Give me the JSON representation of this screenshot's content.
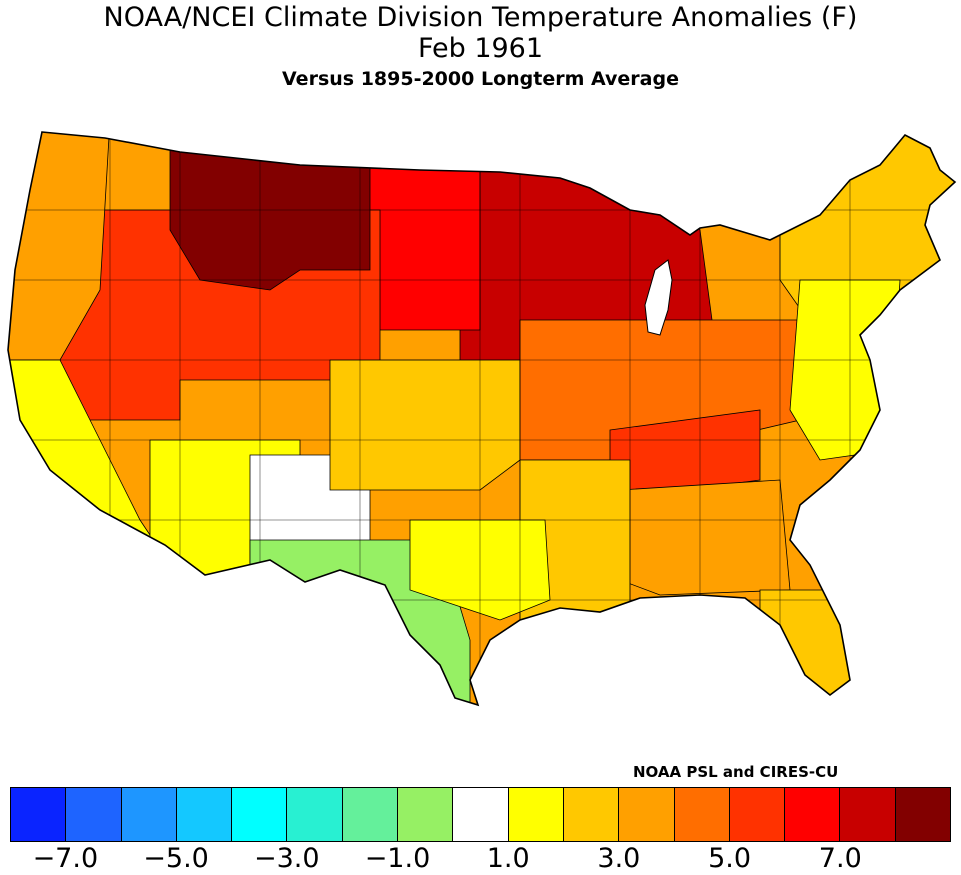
{
  "header": {
    "title": "NOAA/NCEI Climate Division Temperature Anomalies (F)",
    "period": "Feb 1961",
    "baseline": "Versus 1895-2000 Longterm Average"
  },
  "credit": "NOAA PSL and CIRES-CU",
  "legend": {
    "colors": [
      "#0a24ff",
      "#1e64ff",
      "#1e96ff",
      "#14c8ff",
      "#00ffff",
      "#28f0d2",
      "#64f09b",
      "#96f064",
      "#ffffff",
      "#ffff00",
      "#ffc800",
      "#ffa000",
      "#ff6e00",
      "#ff3200",
      "#ff0000",
      "#c80000",
      "#820000"
    ],
    "labels": [
      "-7.0",
      "-5.0",
      "-3.0",
      "-1.0",
      "1.0",
      "3.0",
      "5.0",
      "7.0"
    ]
  },
  "map": {
    "regions": [
      {
        "name": "pacific-northwest",
        "color": "#ffa000"
      },
      {
        "name": "northern-rockies",
        "color": "#820000"
      },
      {
        "name": "great-basin",
        "color": "#ff3200"
      },
      {
        "name": "northern-plains",
        "color": "#ff0000"
      },
      {
        "name": "upper-midwest",
        "color": "#c80000"
      },
      {
        "name": "california",
        "color": "#ffff00"
      },
      {
        "name": "southwest",
        "color": "#ffff00"
      },
      {
        "name": "new-mexico",
        "color": "#ffffff"
      },
      {
        "name": "west-texas",
        "color": "#96f064"
      },
      {
        "name": "central-plains",
        "color": "#ffc800"
      },
      {
        "name": "ohio-valley",
        "color": "#ff6e00"
      },
      {
        "name": "tennessee-valley",
        "color": "#ff3200"
      },
      {
        "name": "southeast",
        "color": "#ffa000"
      },
      {
        "name": "gulf-coast",
        "color": "#ffc800"
      },
      {
        "name": "east-texas",
        "color": "#ffff00"
      },
      {
        "name": "northeast",
        "color": "#ffc800"
      },
      {
        "name": "mid-atlantic",
        "color": "#ffff00"
      },
      {
        "name": "florida",
        "color": "#ffc800"
      }
    ]
  }
}
